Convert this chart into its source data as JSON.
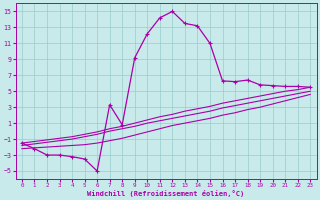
{
  "xlabel": "Windchill (Refroidissement éolien,°C)",
  "x_all": [
    0,
    1,
    2,
    3,
    4,
    5,
    6,
    7,
    8,
    9,
    10,
    11,
    12,
    13,
    14,
    15,
    16,
    17,
    18,
    19,
    20,
    21,
    22,
    23
  ],
  "main_x": [
    0,
    1,
    2,
    3,
    4,
    5,
    6,
    7,
    8,
    9,
    10,
    11,
    12,
    13,
    14,
    15,
    16,
    17,
    18,
    19,
    20,
    21,
    22,
    23
  ],
  "main_y": [
    -1.5,
    -2.2,
    -3.0,
    -3.0,
    -3.2,
    -3.5,
    -5.0,
    3.3,
    0.8,
    9.2,
    12.2,
    14.2,
    15.0,
    13.5,
    13.2,
    11.0,
    6.3,
    6.2,
    6.4,
    5.8,
    5.7,
    5.6,
    5.6,
    5.5
  ],
  "line_top_y": [
    -1.5,
    -1.3,
    -1.1,
    -0.9,
    -0.7,
    -0.4,
    -0.1,
    0.3,
    0.6,
    1.0,
    1.4,
    1.8,
    2.1,
    2.5,
    2.8,
    3.1,
    3.5,
    3.8,
    4.1,
    4.4,
    4.7,
    5.0,
    5.2,
    5.5
  ],
  "line_mid_y": [
    -1.8,
    -1.6,
    -1.4,
    -1.2,
    -1.0,
    -0.7,
    -0.4,
    0.0,
    0.3,
    0.6,
    1.0,
    1.3,
    1.6,
    1.9,
    2.2,
    2.5,
    2.9,
    3.2,
    3.5,
    3.8,
    4.1,
    4.4,
    4.7,
    5.0
  ],
  "line_bot_y": [
    -2.2,
    -2.1,
    -2.0,
    -1.9,
    -1.8,
    -1.7,
    -1.5,
    -1.2,
    -0.9,
    -0.5,
    -0.1,
    0.3,
    0.7,
    1.0,
    1.3,
    1.6,
    2.0,
    2.3,
    2.7,
    3.0,
    3.4,
    3.8,
    4.2,
    4.6
  ],
  "line_color": "#aa00aa",
  "bg_color": "#c8eaea",
  "grid_color": "#99cccc",
  "ylim": [
    -6,
    16
  ],
  "xlim": [
    -0.5,
    23.5
  ],
  "yticks": [
    -5,
    -3,
    -1,
    1,
    3,
    5,
    7,
    9,
    11,
    13,
    15
  ],
  "xticks": [
    0,
    1,
    2,
    3,
    4,
    5,
    6,
    7,
    8,
    9,
    10,
    11,
    12,
    13,
    14,
    15,
    16,
    17,
    18,
    19,
    20,
    21,
    22,
    23
  ]
}
